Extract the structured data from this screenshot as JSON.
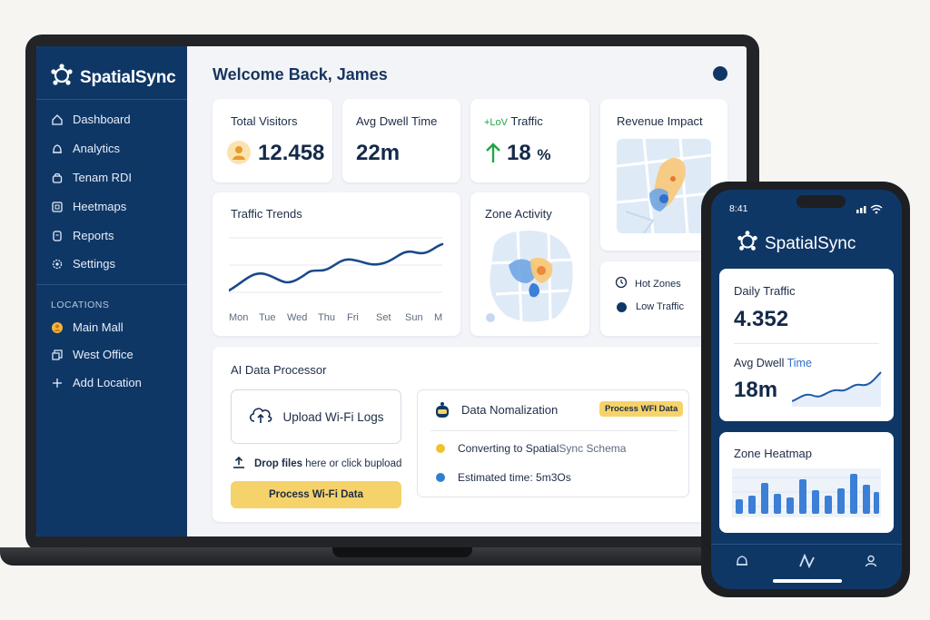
{
  "app": {
    "name": "SpatialSync"
  },
  "sidebar": {
    "items": [
      {
        "label": "Dashboard",
        "icon": "home-icon"
      },
      {
        "label": "Analytics",
        "icon": "bell-icon"
      },
      {
        "label": "Tenam RDI",
        "icon": "lock-icon"
      },
      {
        "label": "Heetmaps",
        "icon": "map-icon"
      },
      {
        "label": "Reports",
        "icon": "clipboard-icon"
      },
      {
        "label": "Settings",
        "icon": "gear-icon"
      }
    ],
    "locations_title": "LOCATIONS",
    "locations": [
      {
        "label": "Main Mall",
        "icon": "person-icon"
      },
      {
        "label": "West Office",
        "icon": "copy-icon"
      },
      {
        "label": "Add Location",
        "icon": "plus-icon"
      }
    ]
  },
  "header": {
    "welcome": "Welcome Back, James"
  },
  "stats": {
    "visitors": {
      "title": "Total Visitors",
      "value": "12.458"
    },
    "dwell": {
      "title": "Avg Dwell Time",
      "value": "22m"
    },
    "traffic": {
      "title_prefix": "+LoV",
      "title": "Traffic",
      "value": "18",
      "unit": "%"
    },
    "revenue": {
      "title": "Revenue Impact"
    }
  },
  "trends": {
    "title": "Traffic Trends",
    "days": [
      "Mon",
      "Tue",
      "Wed",
      "Thu",
      "Fri",
      "Set",
      "Sun",
      "M"
    ]
  },
  "zone_activity": {
    "title": "Zone Activity"
  },
  "legend": {
    "hot": "Hot Zones",
    "low": "Low Traffic"
  },
  "processor": {
    "title": "AI Data Processor",
    "upload_label": "Upload Wi-Fi Logs",
    "drop_bold": "Drop files",
    "drop_rest": " here or click bupload",
    "process_button": "Process Wi-Fi Data",
    "normalization": {
      "title": "Data Nomalization",
      "badge": "Process WFI Data",
      "step1_a": "Converting to Spatial",
      "step1_b": "Sync Schema",
      "step2": "Estimated time: 5m3Os"
    }
  },
  "phone": {
    "time": "8:41",
    "daily_title": "Daily Traffic",
    "daily_value": "4.352",
    "dwell_title_a": "Avg Dwell",
    "dwell_title_b": "Time",
    "dwell_value": "18m",
    "heatmap_title": "Zone Heatmap"
  },
  "colors": {
    "navy": "#0f3766",
    "accent_blue": "#2f7fd0",
    "yellow": "#f6d36a",
    "green": "#25a34a"
  }
}
